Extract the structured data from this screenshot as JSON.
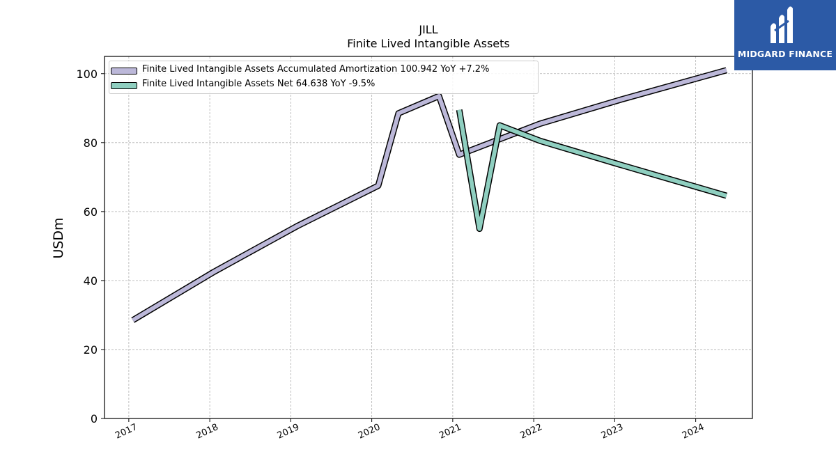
{
  "header": {
    "ticker": "JILL",
    "subtitle": "Finite Lived Intangible Assets"
  },
  "brand": {
    "name": "MIDGARD FINANCE",
    "color": "#2c5aa6"
  },
  "chart_data": {
    "type": "line",
    "title": "JILL",
    "subtitle": "Finite Lived Intangible Assets",
    "xlabel": "",
    "ylabel": "USDm",
    "xlim": [
      2016.7,
      2024.7
    ],
    "ylim": [
      0,
      105
    ],
    "x_ticks": [
      "2017",
      "2018",
      "2019",
      "2020",
      "2021",
      "2022",
      "2023",
      "2024"
    ],
    "y_ticks": [
      0,
      20,
      40,
      60,
      80,
      100
    ],
    "grid": true,
    "legend_position": "top-left",
    "series": [
      {
        "name": "Finite Lived Intangible Assets Accumulated Amortization  100.942 YoY +7.2%",
        "color": "#bcb8d9",
        "x": [
          2017.05,
          2018.05,
          2019.08,
          2020.08,
          2020.33,
          2020.83,
          2021.08,
          2022.08,
          2023.08,
          2024.38
        ],
        "y": [
          28.5,
          42.5,
          55.8,
          67.5,
          88.5,
          93.5,
          76.5,
          85.5,
          92.5,
          101
        ]
      },
      {
        "name": "Finite Lived Intangible Assets Net  64.638 YoY -9.5%",
        "color": "#8fcfc0",
        "x": [
          2021.08,
          2021.33,
          2021.58,
          2022.08,
          2023.08,
          2024.38
        ],
        "y": [
          89.5,
          55,
          85,
          80.5,
          73.5,
          64.6
        ]
      }
    ]
  }
}
